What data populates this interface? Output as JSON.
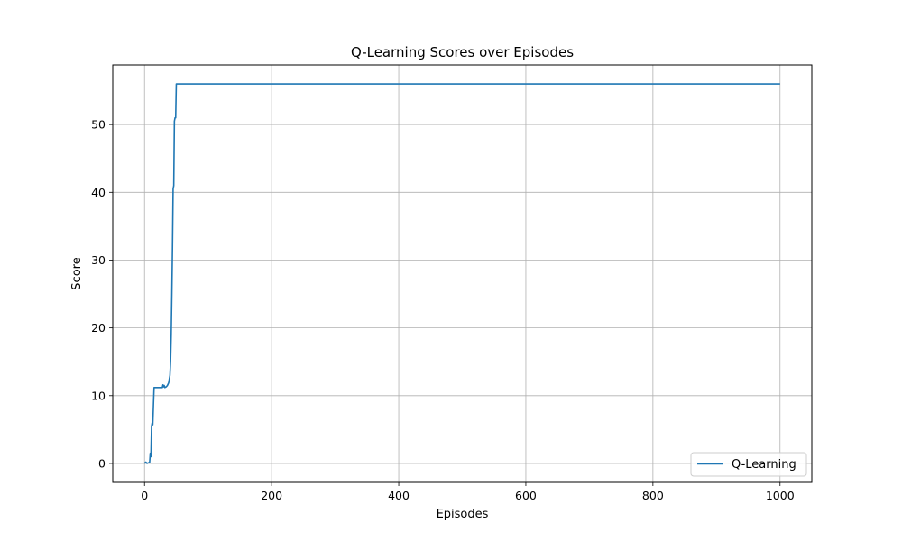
{
  "chart_data": {
    "type": "line",
    "title": "Q-Learning Scores over Episodes",
    "xlabel": "Episodes",
    "ylabel": "Score",
    "xlim": [
      -50,
      1050
    ],
    "ylim": [
      -2.8,
      58.8
    ],
    "xticks": [
      0,
      200,
      400,
      600,
      800,
      1000
    ],
    "yticks": [
      0,
      10,
      20,
      30,
      40,
      50
    ],
    "grid": true,
    "legend_position": "bottom-right",
    "series": [
      {
        "name": "Q-Learning",
        "color": "#1f77b4",
        "x": [
          0,
          2,
          4,
          6,
          8,
          9,
          10,
          11,
          12,
          13,
          14,
          15,
          16,
          20,
          25,
          28,
          29,
          30,
          31,
          32,
          34,
          36,
          38,
          40,
          41,
          42,
          43,
          44,
          45,
          46,
          47,
          48,
          49,
          50,
          1000
        ],
        "y": [
          0,
          0.2,
          0,
          0.1,
          0.1,
          1.5,
          1.0,
          5.5,
          6.0,
          5.7,
          8.5,
          11.2,
          11.2,
          11.2,
          11.2,
          11.2,
          11.6,
          11.3,
          11.5,
          11.2,
          11.3,
          11.5,
          11.9,
          13.0,
          15.0,
          19.0,
          25.0,
          32.0,
          40.5,
          41.0,
          50.5,
          51.0,
          51.0,
          56.0,
          56.0
        ]
      }
    ]
  }
}
